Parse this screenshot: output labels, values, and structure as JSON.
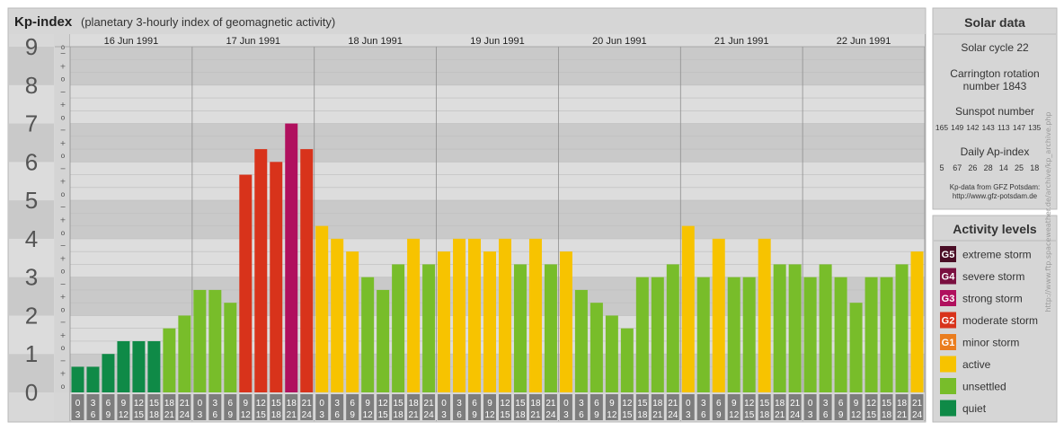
{
  "header": {
    "title": "Kp-index",
    "subtitle": "(planetary 3-hourly index of geomagnetic activity)"
  },
  "chart_data": {
    "type": "bar",
    "title": "Kp-index",
    "subtitle": "(planetary 3-hourly index of geomagnetic activity)",
    "ylim": [
      0,
      9
    ],
    "y_ticks": [
      "0",
      "1",
      "2",
      "3",
      "4",
      "5",
      "6",
      "7",
      "8",
      "9"
    ],
    "y_minor_ticks": [
      "o",
      "+",
      "−"
    ],
    "days": [
      "16 Jun 1991",
      "17 Jun 1991",
      "18 Jun 1991",
      "19 Jun 1991",
      "20 Jun 1991",
      "21 Jun 1991",
      "22 Jun 1991"
    ],
    "hour_start_labels": [
      "0",
      "3",
      "6",
      "9",
      "12",
      "15",
      "18",
      "21"
    ],
    "hour_end_labels": [
      "3",
      "6",
      "9",
      "12",
      "15",
      "18",
      "21",
      "24"
    ],
    "values": [
      0.667,
      0.667,
      1.0,
      1.333,
      1.333,
      1.333,
      1.667,
      2.0,
      2.667,
      2.667,
      2.333,
      5.667,
      6.333,
      6.0,
      7.0,
      6.333,
      4.333,
      4.0,
      3.667,
      3.0,
      2.667,
      3.333,
      4.0,
      3.333,
      3.667,
      4.0,
      4.0,
      3.667,
      4.0,
      3.333,
      4.0,
      3.333,
      3.667,
      2.667,
      2.333,
      2.0,
      1.667,
      3.0,
      3.0,
      3.333,
      4.333,
      3.0,
      4.0,
      3.0,
      3.0,
      4.0,
      3.333,
      3.333,
      3.0,
      3.333,
      3.0,
      2.333,
      3.0,
      3.0,
      3.333,
      3.667
    ],
    "level_colors": {
      "G5": "#4a0e26",
      "G4": "#7a1040",
      "G3": "#b0105e",
      "G2": "#d8331b",
      "G1": "#ea7d1e",
      "active": "#f7c300",
      "unsettled": "#78bd2a",
      "quiet": "#0f8a47"
    }
  },
  "solar_panel": {
    "title": "Solar data",
    "cycle": "Solar cycle 22",
    "carrington_1": "Carrington rotation",
    "carrington_2": "number 1843",
    "sunspot_label": "Sunspot number",
    "sunspots": [
      "165",
      "149",
      "142",
      "143",
      "113",
      "147",
      "135"
    ],
    "ap_label": "Daily Ap-index",
    "ap": [
      "5",
      "67",
      "26",
      "28",
      "14",
      "25",
      "18"
    ],
    "source_1": "Kp-data from GFZ Potsdam:",
    "source_2": "http://www.gfz-potsdam.de"
  },
  "legend": {
    "title": "Activity levels",
    "items": [
      {
        "badge": "G5",
        "label": "extreme storm",
        "color": "#4a0e26"
      },
      {
        "badge": "G4",
        "label": "severe storm",
        "color": "#7a1040"
      },
      {
        "badge": "G3",
        "label": "strong storm",
        "color": "#b0105e"
      },
      {
        "badge": "G2",
        "label": "moderate storm",
        "color": "#d8331b"
      },
      {
        "badge": "G1",
        "label": "minor storm",
        "color": "#ea7d1e"
      },
      {
        "badge": "",
        "label": "active",
        "color": "#f7c300"
      },
      {
        "badge": "",
        "label": "unsettled",
        "color": "#78bd2a"
      },
      {
        "badge": "",
        "label": "quiet",
        "color": "#0f8a47"
      }
    ]
  },
  "watermark": "http://www.ftp.spaceweather.de/archive/kp_archive.php"
}
